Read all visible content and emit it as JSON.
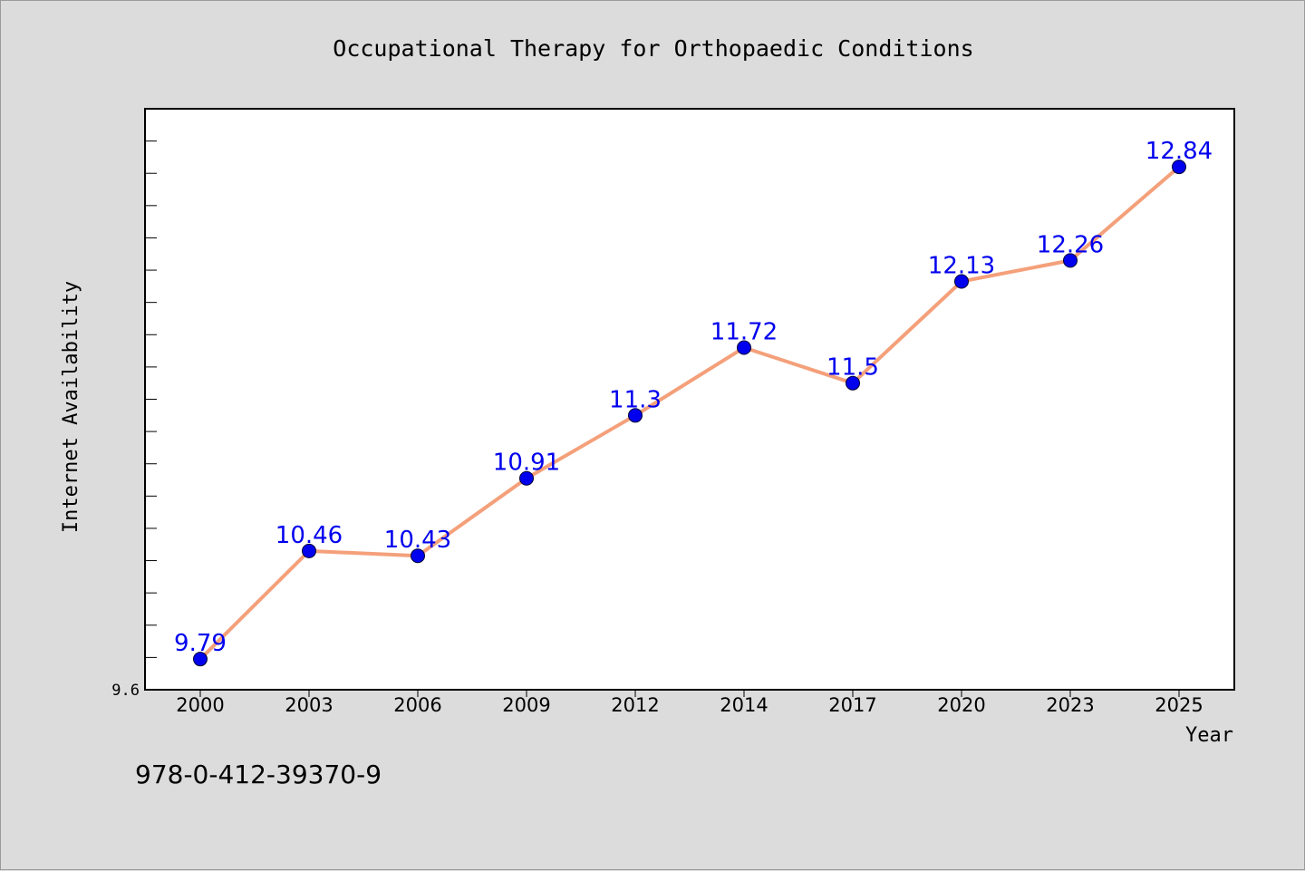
{
  "chart_data": {
    "type": "line",
    "title": "Occupational Therapy for Orthopaedic Conditions",
    "xlabel": "Year",
    "ylabel": "Internet Availability",
    "categories": [
      "2000",
      "2003",
      "2006",
      "2009",
      "2012",
      "2014",
      "2017",
      "2020",
      "2023",
      "2025"
    ],
    "series": [
      {
        "values": [
          9.79,
          10.46,
          10.43,
          10.91,
          11.3,
          11.72,
          11.5,
          12.13,
          12.26,
          12.84
        ]
      }
    ],
    "data_labels": [
      "9.79",
      "10.46",
      "10.43",
      "10.91",
      "11.3",
      "11.72",
      "11.5",
      "12.13",
      "12.26",
      "12.84"
    ],
    "y_tick_labels": [
      "9.6"
    ],
    "ylim": [
      9.6,
      13.2
    ],
    "grid": false,
    "colors": {
      "line": "#f4a07a",
      "marker": "#0000ee",
      "label": "#0000ee",
      "background": "#dcdcdc",
      "plot_bg": "#ffffff"
    }
  },
  "annotation": "978-0-412-39370-9"
}
